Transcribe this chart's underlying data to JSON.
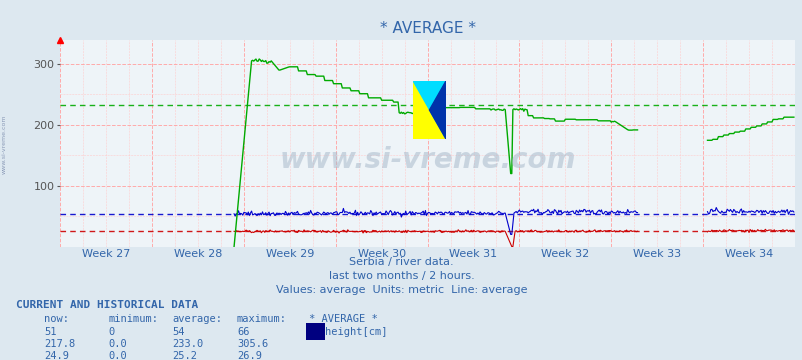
{
  "title": "* AVERAGE *",
  "bg_color": "#dde8f0",
  "plot_bg_color": "#eef4f8",
  "weeks": [
    "Week 27",
    "Week 28",
    "Week 29",
    "Week 30",
    "Week 31",
    "Week 32",
    "Week 33",
    "Week 34"
  ],
  "ylim": [
    0,
    340
  ],
  "yticks": [
    100,
    200,
    300
  ],
  "line_green_avg": 233.0,
  "line_blue_avg": 54,
  "line_red_avg": 25.2,
  "watermark_text": "www.si-vreme.com",
  "sidebar_text": "www.si-vreme.com",
  "subtitle1": "Serbia / river data.",
  "subtitle2": "last two months / 2 hours.",
  "subtitle3": "Values: average  Units: metric  Line: average",
  "subtitle_color": "#3366aa",
  "table_title": "CURRENT AND HISTORICAL DATA",
  "table_color": "#3366aa",
  "legend_label": "height[cm]",
  "legend_color": "#000080",
  "n_points": 672,
  "green_color": "#00aa00",
  "blue_color": "#0000cc",
  "red_color": "#cc0000",
  "now_vals": [
    "51",
    "217.8",
    "24.9"
  ],
  "min_vals": [
    "0",
    "0.0",
    "0.0"
  ],
  "avg_vals": [
    "54",
    "233.0",
    "25.2"
  ],
  "max_vals": [
    "66",
    "305.6",
    "26.9"
  ]
}
